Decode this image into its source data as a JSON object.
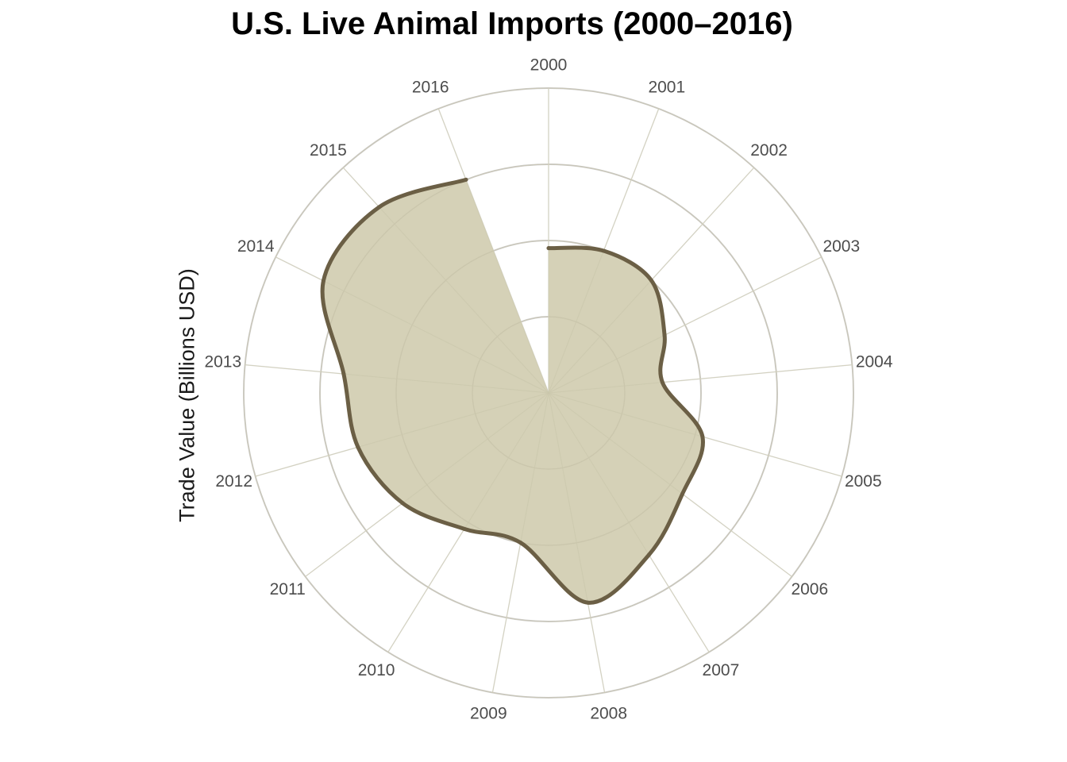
{
  "chart_data": {
    "type": "area",
    "projection": "polar",
    "title": "U.S. Live Animal Imports (2000–2016)",
    "xlabel": "",
    "ylabel": "Trade Value (Billions USD)",
    "categories": [
      "2000",
      "2001",
      "2002",
      "2003",
      "2004",
      "2005",
      "2006",
      "2007",
      "2008",
      "2009",
      "2010",
      "2011",
      "2012",
      "2013",
      "2014",
      "2015",
      "2016"
    ],
    "series": [
      {
        "values": [
          1.9,
          2.0,
          2.0,
          1.7,
          1.5,
          2.1,
          2.2,
          2.5,
          2.8,
          2.0,
          2.1,
          2.4,
          2.6,
          2.7,
          3.3,
          3.3,
          3.0
        ]
      }
    ],
    "ylim": [
      0,
      4
    ],
    "radial_gridlines": [
      1,
      2,
      3,
      4
    ],
    "grid": true,
    "legend": "none",
    "fill_color": "#d3cfb3",
    "line_color": "#6b5f45",
    "grid_color": "#d0d0d0"
  }
}
